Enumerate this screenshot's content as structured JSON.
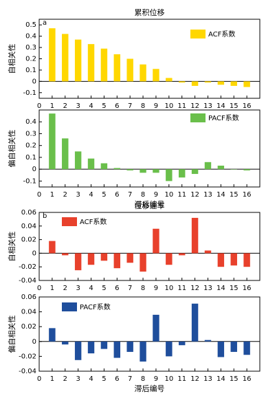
{
  "chart_data": [
    {
      "type": "bar",
      "title": "累积位移",
      "panel_label": "a",
      "ylabel": "自相关性",
      "x": [
        1,
        2,
        3,
        4,
        5,
        6,
        7,
        8,
        9,
        10,
        11,
        12,
        13,
        14,
        15,
        16
      ],
      "xlim": [
        0,
        17
      ],
      "xticks": [
        0,
        1,
        2,
        3,
        4,
        5,
        6,
        7,
        8,
        9,
        10,
        11,
        12,
        13,
        14,
        15,
        16
      ],
      "ylim": [
        -0.15,
        0.55
      ],
      "yticks": [
        -0.1,
        0,
        0.1,
        0.2,
        0.3,
        0.4,
        0.5
      ],
      "series": [
        {
          "name": "ACF系数",
          "color": "#ffd700",
          "values": [
            0.47,
            0.42,
            0.37,
            0.33,
            0.29,
            0.24,
            0.2,
            0.15,
            0.11,
            0.03,
            -0.01,
            -0.04,
            -0.01,
            -0.03,
            -0.04,
            -0.05
          ]
        }
      ]
    },
    {
      "type": "bar",
      "ylabel": "偏自相关性",
      "xlabel": "滞后编号",
      "x": [
        1,
        2,
        3,
        4,
        5,
        6,
        7,
        8,
        9,
        10,
        11,
        12,
        13,
        14,
        15,
        16
      ],
      "xlim": [
        0,
        17
      ],
      "xticks": [
        0,
        1,
        2,
        3,
        4,
        5,
        6,
        7,
        8,
        9,
        10,
        11,
        12,
        13,
        14,
        15,
        16
      ],
      "ylim": [
        -0.15,
        0.5
      ],
      "yticks": [
        -0.1,
        0,
        0.1,
        0.2,
        0.3,
        0.4
      ],
      "series": [
        {
          "name": "PACF系数",
          "color": "#6abf4b",
          "values": [
            0.47,
            0.26,
            0.15,
            0.09,
            0.05,
            0.01,
            -0.01,
            -0.03,
            -0.03,
            -0.1,
            -0.07,
            -0.04,
            0.06,
            0.03,
            0,
            -0.01
          ]
        }
      ]
    },
    {
      "type": "bar",
      "title": "位移速率",
      "panel_label": "b",
      "ylabel": "自相关性",
      "x": [
        1,
        2,
        3,
        4,
        5,
        6,
        7,
        8,
        9,
        10,
        11,
        12,
        13,
        14,
        15,
        16
      ],
      "xlim": [
        0,
        17
      ],
      "xticks": [
        0,
        1,
        2,
        3,
        4,
        5,
        6,
        7,
        8,
        9,
        10,
        11,
        12,
        13,
        14,
        15,
        16
      ],
      "ylim": [
        -0.04,
        0.06
      ],
      "yticks": [
        -0.04,
        -0.02,
        0,
        0.02,
        0.04,
        0.06
      ],
      "series": [
        {
          "name": "ACF系数",
          "color": "#e8412c",
          "values": [
            0.018,
            -0.003,
            -0.025,
            -0.017,
            -0.011,
            -0.022,
            -0.014,
            -0.027,
            0.036,
            -0.017,
            -0.003,
            0.052,
            0.004,
            -0.02,
            -0.018,
            -0.02
          ]
        }
      ]
    },
    {
      "type": "bar",
      "ylabel": "偏自相关性",
      "xlabel": "滞后编号",
      "x": [
        1,
        2,
        3,
        4,
        5,
        6,
        7,
        8,
        9,
        10,
        11,
        12,
        13,
        14,
        15,
        16
      ],
      "xlim": [
        0,
        17
      ],
      "xticks": [
        0,
        1,
        2,
        3,
        4,
        5,
        6,
        7,
        8,
        9,
        10,
        11,
        12,
        13,
        14,
        15,
        16
      ],
      "ylim": [
        -0.04,
        0.06
      ],
      "yticks": [
        -0.04,
        -0.02,
        0,
        0.02,
        0.04,
        0.06
      ],
      "series": [
        {
          "name": "PACF系数",
          "color": "#1f4e9c",
          "values": [
            0.018,
            -0.004,
            -0.025,
            -0.016,
            -0.01,
            -0.022,
            -0.014,
            -0.027,
            0.036,
            -0.02,
            -0.005,
            0.051,
            0.002,
            -0.021,
            -0.014,
            -0.018
          ]
        }
      ]
    }
  ]
}
